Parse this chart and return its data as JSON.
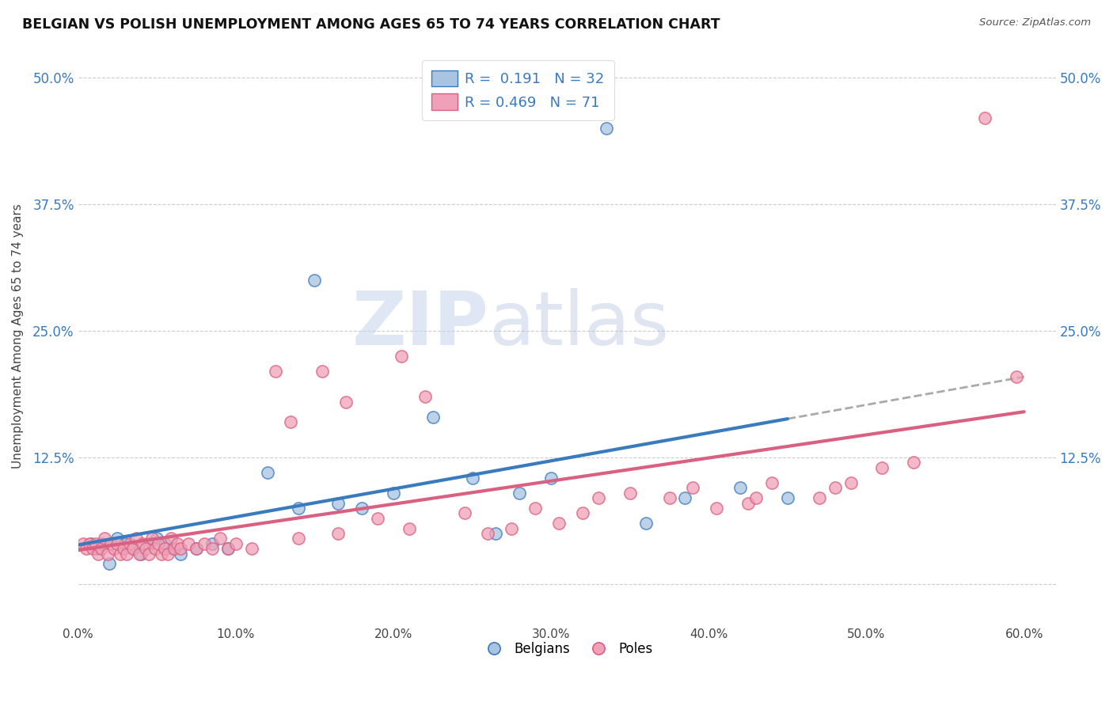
{
  "title": "BELGIAN VS POLISH UNEMPLOYMENT AMONG AGES 65 TO 74 YEARS CORRELATION CHART",
  "source": "Source: ZipAtlas.com",
  "xlim": [
    0.0,
    62.0
  ],
  "ylim": [
    -4.0,
    53.0
  ],
  "belgian_R": "0.191",
  "belgian_N": "32",
  "polish_R": "0.469",
  "polish_N": "71",
  "belgian_color": "#a8c4e0",
  "polish_color": "#f0a0b8",
  "belgian_line_color": "#3a7abf",
  "polish_line_color": "#d96080",
  "dashed_line_color": "#aaaaaa",
  "watermark_zip": "ZIP",
  "watermark_atlas": "atlas",
  "legend_label_belgians": "Belgians",
  "legend_label_poles": "Poles",
  "bel_x": [
    0.8,
    1.2,
    1.5,
    2.0,
    2.5,
    3.0,
    3.5,
    4.0,
    4.5,
    5.0,
    5.5,
    6.0,
    6.5,
    7.5,
    8.5,
    9.5,
    12.0,
    14.0,
    15.0,
    16.5,
    18.0,
    20.0,
    22.5,
    25.0,
    26.5,
    28.0,
    30.0,
    33.5,
    36.0,
    38.5,
    42.0,
    45.0
  ],
  "bel_y": [
    4.0,
    3.5,
    4.0,
    2.0,
    4.5,
    4.0,
    3.5,
    3.0,
    4.0,
    4.5,
    4.0,
    3.5,
    3.0,
    3.5,
    4.0,
    3.5,
    11.0,
    7.5,
    30.0,
    8.0,
    7.5,
    9.0,
    16.5,
    10.5,
    5.0,
    9.0,
    10.5,
    45.0,
    6.0,
    8.5,
    9.5,
    8.5
  ],
  "pol_x": [
    0.3,
    0.5,
    0.7,
    0.9,
    1.1,
    1.3,
    1.5,
    1.7,
    1.9,
    2.1,
    2.3,
    2.5,
    2.7,
    2.9,
    3.1,
    3.3,
    3.5,
    3.7,
    3.9,
    4.1,
    4.3,
    4.5,
    4.7,
    4.9,
    5.1,
    5.3,
    5.5,
    5.7,
    5.9,
    6.1,
    6.3,
    6.5,
    7.0,
    7.5,
    8.0,
    8.5,
    9.0,
    9.5,
    10.0,
    11.0,
    12.5,
    13.5,
    14.0,
    15.5,
    16.5,
    17.0,
    19.0,
    20.5,
    21.0,
    22.0,
    24.5,
    26.0,
    27.5,
    29.0,
    30.5,
    32.0,
    33.0,
    35.0,
    37.5,
    39.0,
    40.5,
    42.5,
    43.0,
    44.0,
    47.0,
    48.0,
    49.0,
    51.0,
    53.0,
    57.5,
    59.5
  ],
  "pol_y": [
    4.0,
    3.5,
    4.0,
    3.5,
    4.0,
    3.0,
    3.5,
    4.5,
    3.0,
    4.0,
    3.5,
    4.0,
    3.0,
    3.5,
    3.0,
    4.0,
    3.5,
    4.5,
    3.0,
    4.0,
    3.5,
    3.0,
    4.5,
    3.5,
    4.0,
    3.0,
    3.5,
    3.0,
    4.5,
    3.5,
    4.0,
    3.5,
    4.0,
    3.5,
    4.0,
    3.5,
    4.5,
    3.5,
    4.0,
    3.5,
    21.0,
    16.0,
    4.5,
    21.0,
    5.0,
    18.0,
    6.5,
    22.5,
    5.5,
    18.5,
    7.0,
    5.0,
    5.5,
    7.5,
    6.0,
    7.0,
    8.5,
    9.0,
    8.5,
    9.5,
    7.5,
    8.0,
    8.5,
    10.0,
    8.5,
    9.5,
    10.0,
    11.5,
    12.0,
    46.0,
    20.5
  ],
  "background_color": "#ffffff",
  "grid_color": "#cccccc",
  "ytick_vals": [
    0,
    12.5,
    25.0,
    37.5,
    50.0
  ],
  "xtick_vals": [
    0,
    10,
    20,
    30,
    40,
    50,
    60
  ]
}
